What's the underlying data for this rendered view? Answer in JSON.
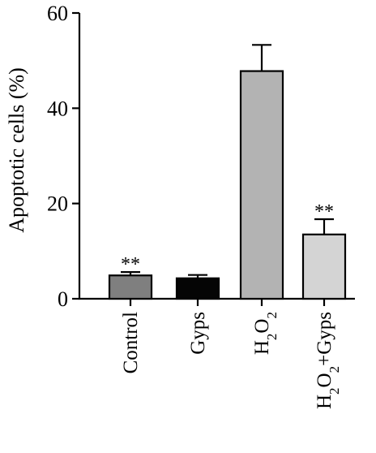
{
  "chart_data": {
    "type": "bar",
    "ylabel": "Apoptotic cells (%)",
    "ylim": [
      0,
      60
    ],
    "yticks": [
      0,
      20,
      40,
      60
    ],
    "categories": [
      {
        "text": "Control"
      },
      {
        "text": "Gyps"
      },
      {
        "parts": [
          {
            "t": "H"
          },
          {
            "t": "2",
            "sub": true
          },
          {
            "t": "O"
          },
          {
            "t": "2",
            "sub": true
          }
        ]
      },
      {
        "parts": [
          {
            "t": "H"
          },
          {
            "t": "2",
            "sub": true
          },
          {
            "t": "O"
          },
          {
            "t": "2",
            "sub": true
          },
          {
            "t": "+Gyps"
          }
        ]
      }
    ],
    "values": [
      4.9,
      4.3,
      47.8,
      13.5
    ],
    "errors": [
      0.7,
      0.7,
      5.5,
      3.2
    ],
    "significance": [
      "**",
      "",
      "",
      "**"
    ],
    "colors": [
      "#7f7f7f",
      "#050505",
      "#b3b3b3",
      "#d4d4d4"
    ],
    "grid": false,
    "legend": "none"
  }
}
